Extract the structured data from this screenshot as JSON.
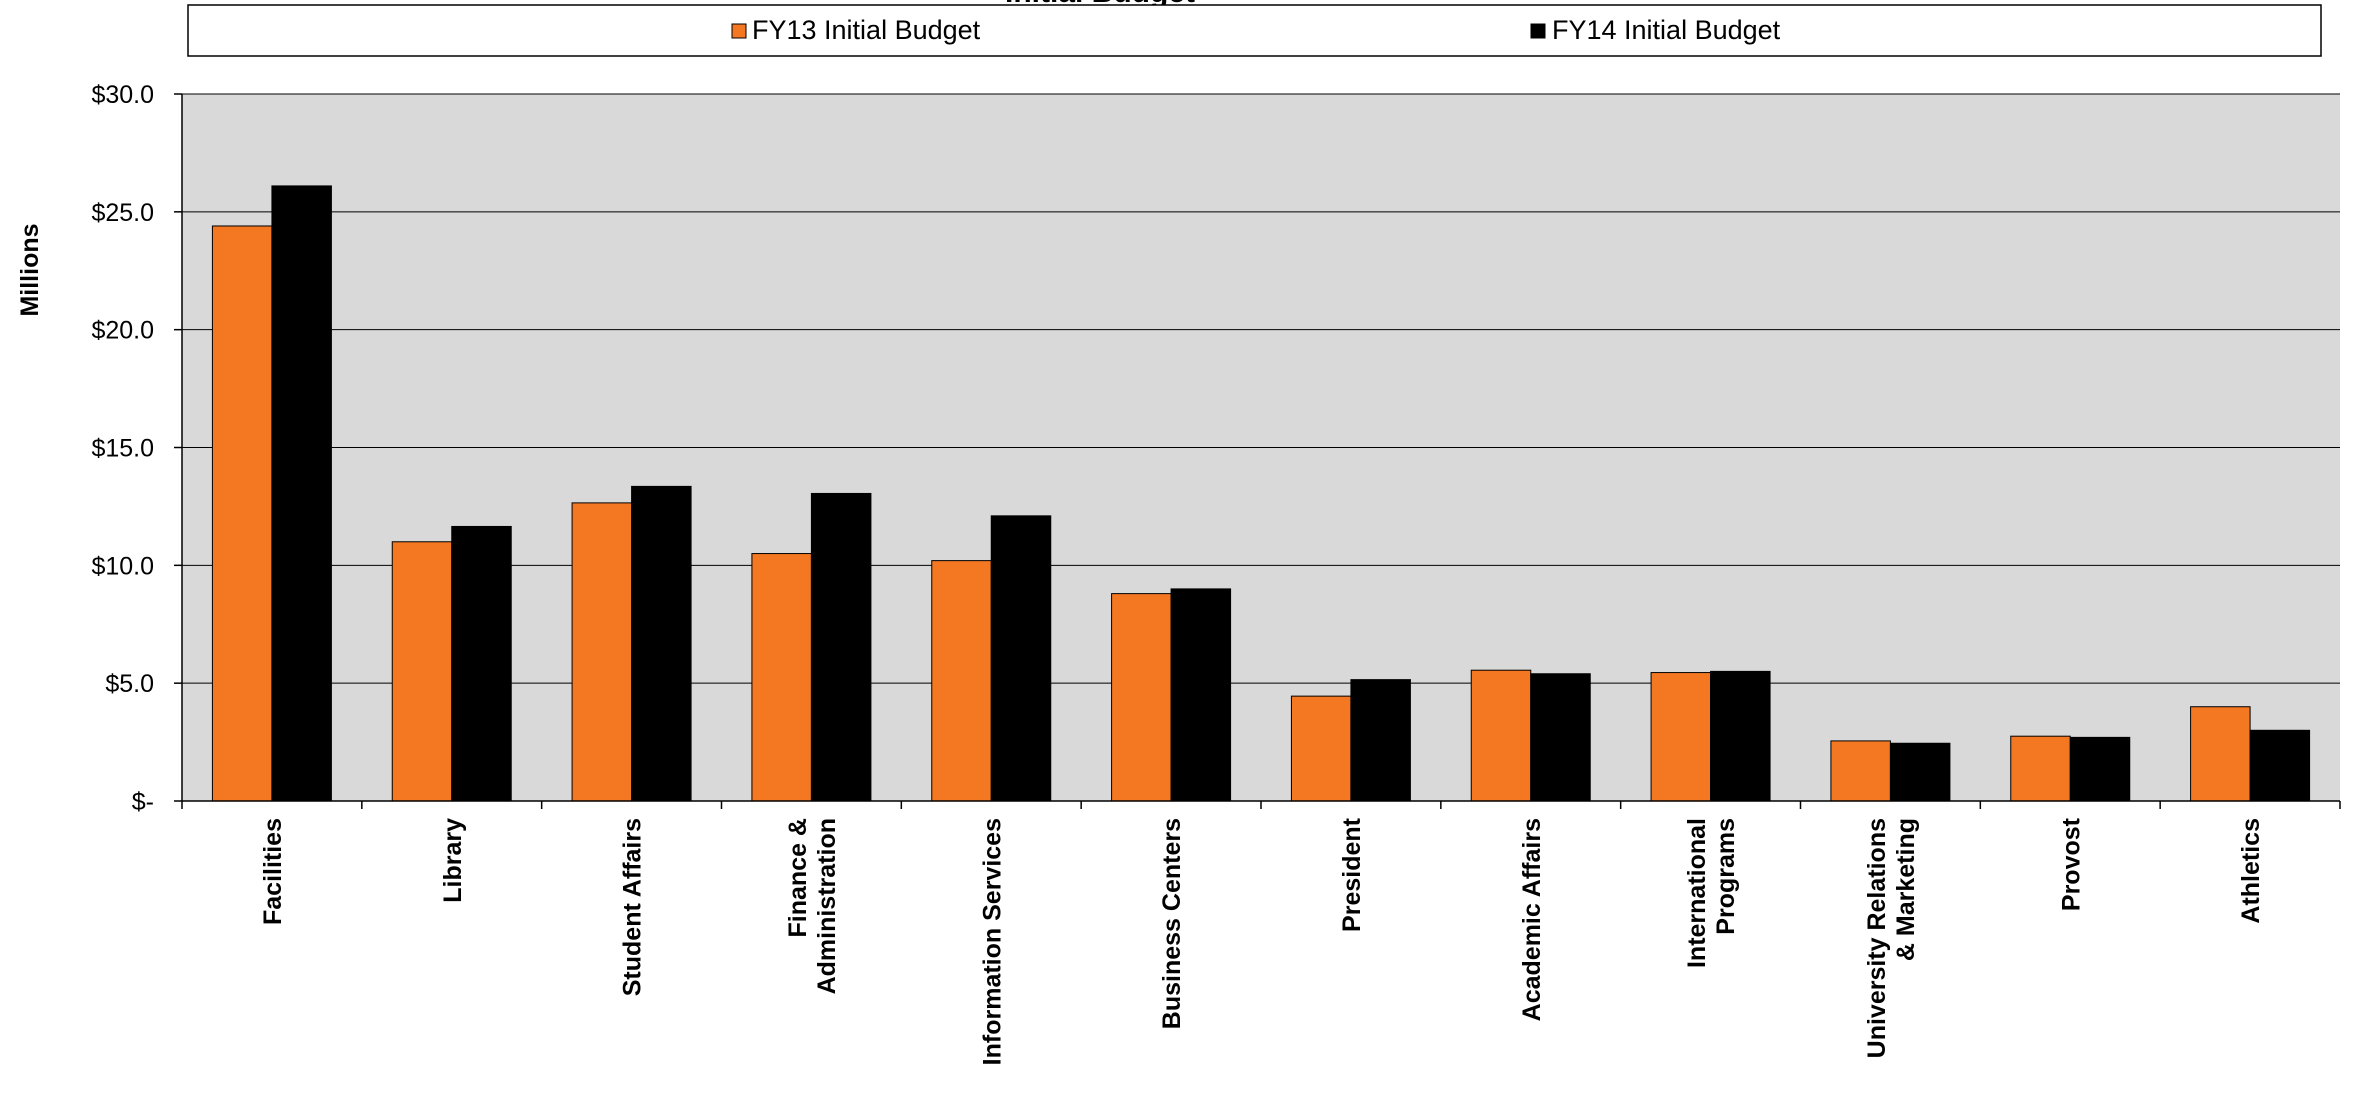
{
  "chart_data": {
    "type": "bar",
    "title": "Initial Budget",
    "xlabel": "",
    "ylabel": "Millions",
    "ylim": [
      0,
      30
    ],
    "yticks": [
      0,
      5,
      10,
      15,
      20,
      25,
      30
    ],
    "ytick_labels": [
      "$-",
      "$5.0",
      "$10.0",
      "$15.0",
      "$20.0",
      "$25.0",
      "$30.0"
    ],
    "grid": true,
    "legend_position": "top",
    "plot_background": "#d9d9d9",
    "categories": [
      [
        "Facilities"
      ],
      [
        "Library"
      ],
      [
        "Student Affairs"
      ],
      [
        "Finance &",
        "Administration"
      ],
      [
        "Information Services"
      ],
      [
        "Business Centers"
      ],
      [
        "President"
      ],
      [
        "Academic Affairs"
      ],
      [
        "International",
        "Programs"
      ],
      [
        "University Relations",
        "& Marketing"
      ],
      [
        "Provost"
      ],
      [
        "Athletics"
      ]
    ],
    "series": [
      {
        "name": "FY13 Initial Budget",
        "color": "#f47721",
        "values": [
          24.4,
          11.0,
          12.65,
          10.5,
          10.2,
          8.8,
          4.45,
          5.55,
          5.45,
          2.55,
          2.75,
          4.0
        ]
      },
      {
        "name": "FY14 Initial Budget",
        "color": "#000000",
        "values": [
          26.1,
          11.65,
          13.35,
          13.05,
          12.1,
          9.0,
          5.15,
          5.4,
          5.5,
          2.45,
          2.7,
          3.0
        ]
      }
    ]
  }
}
